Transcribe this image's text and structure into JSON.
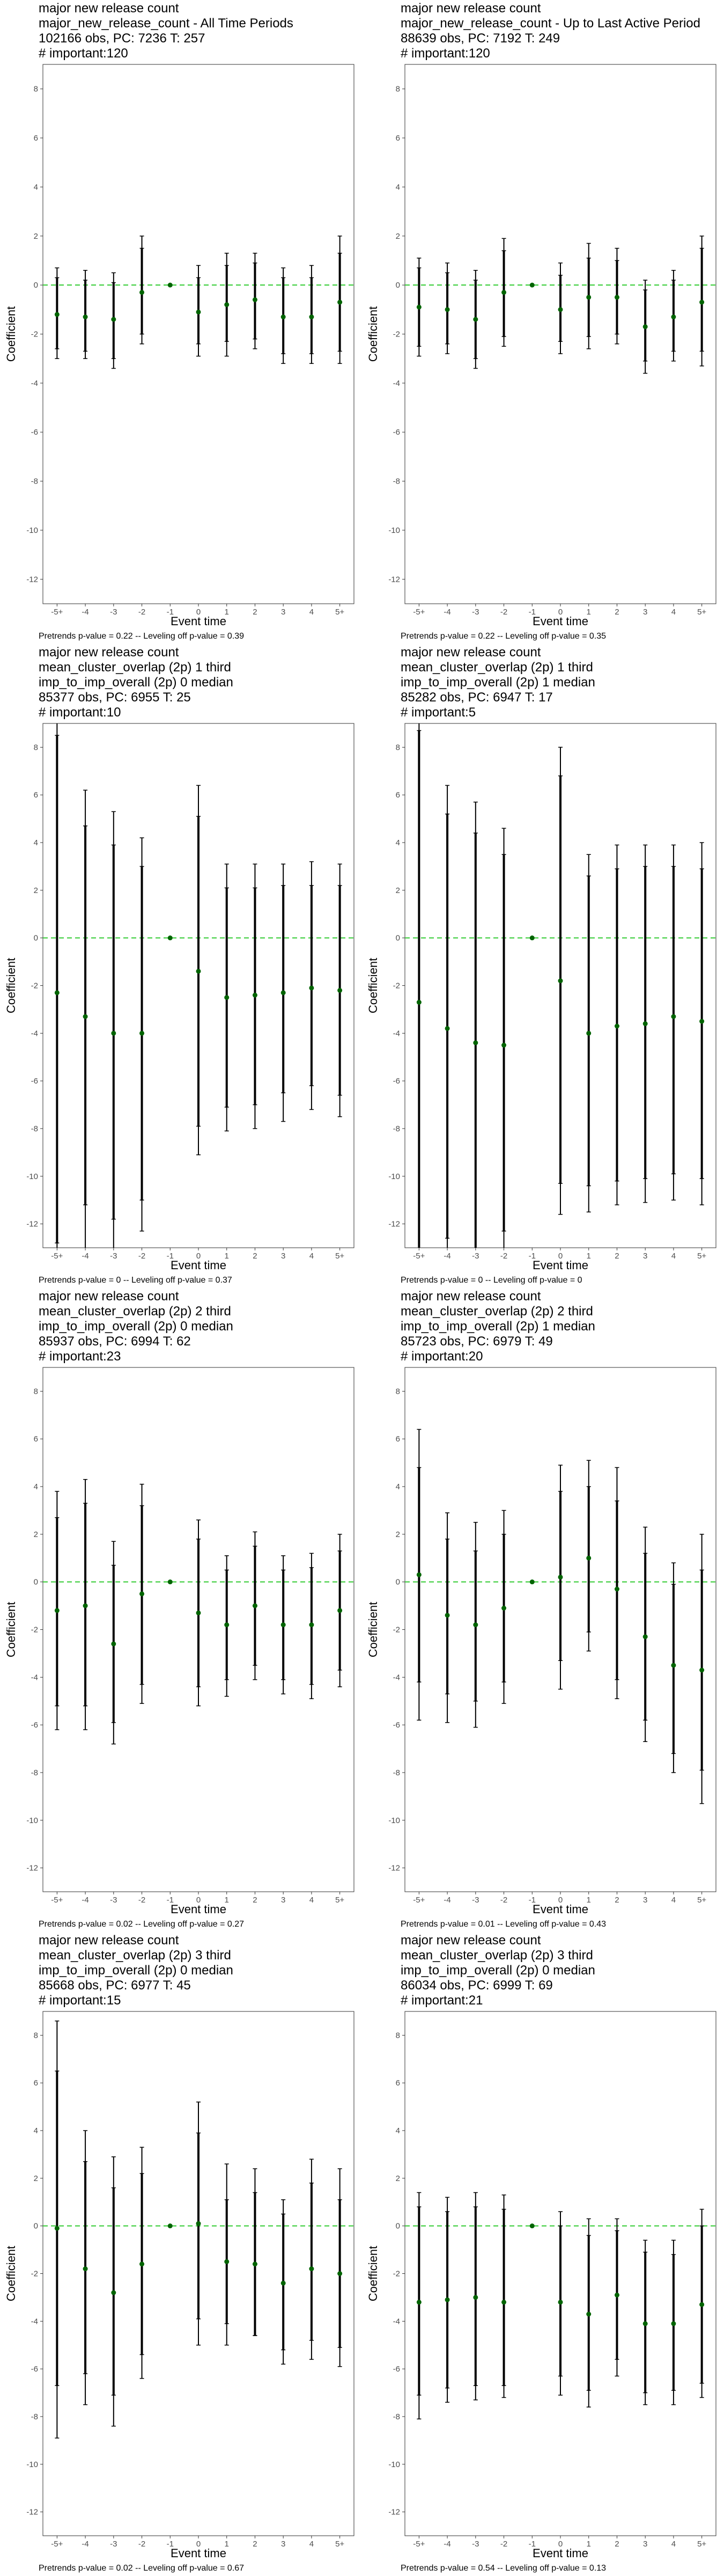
{
  "chart_data": [
    {
      "type": "scatter",
      "title_lines": [
        "major new release count",
        "major_new_release_count - All Time Periods",
        "102166 obs, PC: 7236 T: 257",
        "# important:120"
      ],
      "xlabel": "Event time",
      "ylabel": "Coefficient",
      "categories": [
        "-5+",
        "-4",
        "-3",
        "-2",
        "-1",
        "0",
        "1",
        "2",
        "3",
        "4",
        "5+"
      ],
      "ylim": [
        -13,
        9
      ],
      "yticks": [
        -12,
        -10,
        -8,
        -6,
        -4,
        -2,
        0,
        2,
        4,
        6,
        8
      ],
      "estimate": [
        -1.2,
        -1.3,
        -1.4,
        -0.3,
        0,
        -1.1,
        -0.8,
        -0.6,
        -1.3,
        -1.3,
        -0.7
      ],
      "ci_low": [
        -3.0,
        -3.0,
        -3.4,
        -2.4,
        0,
        -2.9,
        -2.9,
        -2.6,
        -3.2,
        -3.2,
        -3.2
      ],
      "ci_high": [
        0.7,
        0.6,
        0.5,
        2.0,
        0,
        0.8,
        1.3,
        1.3,
        0.7,
        0.8,
        2.0
      ],
      "inner_low": [
        -2.6,
        -2.7,
        -3.0,
        -2.0,
        0,
        -2.4,
        -2.3,
        -2.2,
        -2.8,
        -2.8,
        -2.7
      ],
      "inner_high": [
        0.3,
        0.2,
        0.1,
        1.5,
        0,
        0.3,
        0.8,
        0.9,
        0.3,
        0.3,
        1.3
      ],
      "footnote": "Pretrends p-value = 0.22 -- Leveling off p-value = 0.39"
    },
    {
      "type": "scatter",
      "title_lines": [
        "major new release count",
        "major_new_release_count - Up to Last Active Period",
        "88639 obs, PC: 7192 T: 249",
        "# important:120"
      ],
      "xlabel": "Event time",
      "ylabel": "Coefficient",
      "categories": [
        "-5+",
        "-4",
        "-3",
        "-2",
        "-1",
        "0",
        "1",
        "2",
        "3",
        "4",
        "5+"
      ],
      "ylim": [
        -13,
        9
      ],
      "yticks": [
        -12,
        -10,
        -8,
        -6,
        -4,
        -2,
        0,
        2,
        4,
        6,
        8
      ],
      "estimate": [
        -0.9,
        -1.0,
        -1.4,
        -0.3,
        0,
        -1.0,
        -0.5,
        -0.5,
        -1.7,
        -1.3,
        -0.7
      ],
      "ci_low": [
        -2.9,
        -2.8,
        -3.4,
        -2.5,
        0,
        -2.8,
        -2.6,
        -2.4,
        -3.6,
        -3.1,
        -3.3
      ],
      "ci_high": [
        1.1,
        0.9,
        0.6,
        1.9,
        0,
        0.9,
        1.7,
        1.5,
        0.2,
        0.6,
        2.0
      ],
      "inner_low": [
        -2.5,
        -2.4,
        -3.0,
        -2.1,
        0,
        -2.3,
        -2.1,
        -2.0,
        -3.1,
        -2.7,
        -2.7
      ],
      "inner_high": [
        0.7,
        0.5,
        0.2,
        1.4,
        0,
        0.4,
        1.1,
        1.0,
        -0.2,
        0.2,
        1.5
      ],
      "footnote": "Pretrends p-value = 0.22 -- Leveling off p-value = 0.35"
    },
    {
      "type": "scatter",
      "title_lines": [
        "major new release count",
        "mean_cluster_overlap (2p) 1 third",
        "imp_to_imp_overall (2p) 0 median",
        "85377 obs, PC: 6955 T: 25",
        "# important:10"
      ],
      "xlabel": "Event time",
      "ylabel": "Coefficient",
      "categories": [
        "-5+",
        "-4",
        "-3",
        "-2",
        "-1",
        "0",
        "1",
        "2",
        "3",
        "4",
        "5+"
      ],
      "ylim": [
        -13,
        9
      ],
      "yticks": [
        -12,
        -10,
        -8,
        -6,
        -4,
        -2,
        0,
        2,
        4,
        6,
        8
      ],
      "estimate": [
        -2.3,
        -3.3,
        -4.0,
        -4.0,
        0,
        -1.4,
        -2.5,
        -2.4,
        -2.3,
        -2.1,
        -2.2
      ],
      "ci_low": [
        -13.0,
        -13.0,
        -13.0,
        -12.3,
        0,
        -9.1,
        -8.1,
        -8.0,
        -7.7,
        -7.2,
        -7.5
      ],
      "ci_high": [
        9.0,
        6.2,
        5.3,
        4.2,
        0,
        6.4,
        3.1,
        3.1,
        3.1,
        3.2,
        3.1
      ],
      "inner_low": [
        -12.8,
        -11.2,
        -11.8,
        -11.0,
        0,
        -7.9,
        -7.1,
        -7.0,
        -6.5,
        -6.2,
        -6.6
      ],
      "inner_high": [
        8.5,
        4.7,
        3.9,
        3.0,
        0,
        5.1,
        2.1,
        2.1,
        2.2,
        2.2,
        2.2
      ],
      "footnote": "Pretrends p-value = 0 -- Leveling off p-value = 0.37"
    },
    {
      "type": "scatter",
      "title_lines": [
        "major new release count",
        "mean_cluster_overlap (2p) 1 third",
        "imp_to_imp_overall (2p) 1 median",
        "85282 obs, PC: 6947 T: 17",
        "# important:5"
      ],
      "xlabel": "Event time",
      "ylabel": "Coefficient",
      "categories": [
        "-5+",
        "-4",
        "-3",
        "-2",
        "-1",
        "0",
        "1",
        "2",
        "3",
        "4",
        "5+"
      ],
      "ylim": [
        -13,
        9
      ],
      "yticks": [
        -12,
        -10,
        -8,
        -6,
        -4,
        -2,
        0,
        2,
        4,
        6,
        8
      ],
      "estimate": [
        -2.7,
        -3.8,
        -4.4,
        -4.5,
        0,
        -1.8,
        -4.0,
        -3.7,
        -3.6,
        -3.3,
        -3.5
      ],
      "ci_low": [
        -13.0,
        -13.0,
        -13.0,
        -13.0,
        0,
        -11.6,
        -11.5,
        -11.2,
        -11.1,
        -11.0,
        -11.2
      ],
      "ci_high": [
        9.0,
        6.4,
        5.7,
        4.6,
        0,
        8.0,
        3.5,
        3.9,
        3.9,
        3.9,
        4.0
      ],
      "inner_low": [
        -13.0,
        -12.6,
        -13.0,
        -12.3,
        0,
        -10.3,
        -10.4,
        -10.2,
        -10.1,
        -9.9,
        -10.1
      ],
      "inner_high": [
        8.7,
        5.2,
        4.4,
        3.5,
        0,
        6.8,
        2.6,
        2.9,
        3.0,
        3.0,
        2.9
      ],
      "footnote": "Pretrends p-value = 0 -- Leveling off p-value = 0"
    },
    {
      "type": "scatter",
      "title_lines": [
        "major new release count",
        "mean_cluster_overlap (2p) 2 third",
        "imp_to_imp_overall (2p) 0 median",
        "85937 obs, PC: 6994 T: 62",
        "# important:23"
      ],
      "xlabel": "Event time",
      "ylabel": "Coefficient",
      "categories": [
        "-5+",
        "-4",
        "-3",
        "-2",
        "-1",
        "0",
        "1",
        "2",
        "3",
        "4",
        "5+"
      ],
      "ylim": [
        -13,
        9
      ],
      "yticks": [
        -12,
        -10,
        -8,
        -6,
        -4,
        -2,
        0,
        2,
        4,
        6,
        8
      ],
      "estimate": [
        -1.2,
        -1.0,
        -2.6,
        -0.5,
        0,
        -1.3,
        -1.8,
        -1.0,
        -1.8,
        -1.8,
        -1.2
      ],
      "ci_low": [
        -6.2,
        -6.2,
        -6.8,
        -5.1,
        0,
        -5.2,
        -4.8,
        -4.1,
        -4.7,
        -4.9,
        -4.4
      ],
      "ci_high": [
        3.8,
        4.3,
        1.7,
        4.1,
        0,
        2.6,
        1.1,
        2.1,
        1.1,
        1.2,
        2.0
      ],
      "inner_low": [
        -5.2,
        -5.2,
        -5.9,
        -4.3,
        0,
        -4.4,
        -4.1,
        -3.5,
        -4.1,
        -4.3,
        -3.7
      ],
      "inner_high": [
        2.7,
        3.3,
        0.7,
        3.2,
        0,
        1.8,
        0.5,
        1.5,
        0.5,
        0.6,
        1.3
      ],
      "footnote": "Pretrends p-value = 0.02 -- Leveling off p-value = 0.27"
    },
    {
      "type": "scatter",
      "title_lines": [
        "major new release count",
        "mean_cluster_overlap (2p) 2 third",
        "imp_to_imp_overall (2p) 1 median",
        "85723 obs, PC: 6979 T: 49",
        "# important:20"
      ],
      "xlabel": "Event time",
      "ylabel": "Coefficient",
      "categories": [
        "-5+",
        "-4",
        "-3",
        "-2",
        "-1",
        "0",
        "1",
        "2",
        "3",
        "4",
        "5+"
      ],
      "ylim": [
        -13,
        9
      ],
      "yticks": [
        -12,
        -10,
        -8,
        -6,
        -4,
        -2,
        0,
        2,
        4,
        6,
        8
      ],
      "estimate": [
        0.3,
        -1.4,
        -1.8,
        -1.1,
        0,
        0.2,
        1.0,
        -0.3,
        -2.3,
        -3.5,
        -3.7
      ],
      "ci_low": [
        -5.8,
        -5.9,
        -6.1,
        -5.1,
        0,
        -4.5,
        -2.9,
        -4.9,
        -6.7,
        -8.0,
        -9.3
      ],
      "ci_high": [
        6.4,
        2.9,
        2.5,
        3.0,
        0,
        4.9,
        5.1,
        4.8,
        2.3,
        0.8,
        2.0
      ],
      "inner_low": [
        -4.2,
        -4.7,
        -5.0,
        -4.2,
        0,
        -3.3,
        -2.1,
        -4.1,
        -5.8,
        -7.2,
        -7.9
      ],
      "inner_high": [
        4.8,
        1.8,
        1.3,
        2.0,
        0,
        3.8,
        4.0,
        3.4,
        1.2,
        -0.1,
        0.5
      ],
      "footnote": "Pretrends p-value = 0.01 -- Leveling off p-value = 0.43"
    },
    {
      "type": "scatter",
      "title_lines": [
        "major new release count",
        "mean_cluster_overlap (2p) 3 third",
        "imp_to_imp_overall (2p) 0 median",
        "85668 obs, PC: 6977 T: 45",
        "# important:15"
      ],
      "xlabel": "Event time",
      "ylabel": "Coefficient",
      "categories": [
        "-5+",
        "-4",
        "-3",
        "-2",
        "-1",
        "0",
        "1",
        "2",
        "3",
        "4",
        "5+"
      ],
      "ylim": [
        -13,
        9
      ],
      "yticks": [
        -12,
        -10,
        -8,
        -6,
        -4,
        -2,
        0,
        2,
        4,
        6,
        8
      ],
      "estimate": [
        -0.1,
        -1.8,
        -2.8,
        -1.6,
        0,
        0.1,
        -1.5,
        -1.6,
        -2.4,
        -1.8,
        -2.0
      ],
      "ci_low": [
        -8.9,
        -7.5,
        -8.4,
        -6.4,
        0,
        -5.0,
        -5.0,
        -4.6,
        -5.8,
        -5.6,
        -5.9
      ],
      "ci_high": [
        8.6,
        4.0,
        2.9,
        3.3,
        0,
        5.2,
        2.6,
        2.4,
        1.1,
        2.8,
        2.4
      ],
      "inner_low": [
        -6.7,
        -6.2,
        -7.1,
        -5.4,
        0,
        -3.9,
        -4.1,
        -4.6,
        -5.2,
        -4.8,
        -5.1
      ],
      "inner_high": [
        6.5,
        2.7,
        1.6,
        2.2,
        0,
        3.9,
        1.1,
        1.4,
        0.5,
        1.8,
        1.1
      ],
      "footnote": "Pretrends p-value = 0.02 -- Leveling off p-value = 0.67"
    },
    {
      "type": "scatter",
      "title_lines": [
        "major new release count",
        "mean_cluster_overlap (2p) 3 third",
        "imp_to_imp_overall (2p) 0 median",
        "86034 obs, PC: 6999 T: 69",
        "# important:21"
      ],
      "xlabel": "Event time",
      "ylabel": "Coefficient",
      "categories": [
        "-5+",
        "-4",
        "-3",
        "-2",
        "-1",
        "0",
        "1",
        "2",
        "3",
        "4",
        "5+"
      ],
      "ylim": [
        -13,
        9
      ],
      "yticks": [
        -12,
        -10,
        -8,
        -6,
        -4,
        -2,
        0,
        2,
        4,
        6,
        8
      ],
      "estimate": [
        -3.2,
        -3.1,
        -3.0,
        -3.2,
        0,
        -3.2,
        -3.7,
        -2.9,
        -4.1,
        -4.1,
        -3.3
      ],
      "ci_low": [
        -8.1,
        -7.4,
        -7.3,
        -7.2,
        0,
        -7.1,
        -7.6,
        -6.3,
        -7.5,
        -7.5,
        -7.2
      ],
      "ci_high": [
        1.4,
        1.2,
        1.4,
        1.3,
        0,
        0.6,
        0.3,
        0.3,
        -0.6,
        -0.6,
        0.7
      ],
      "inner_low": [
        -7.1,
        -6.8,
        -6.7,
        -6.7,
        0,
        -6.3,
        -6.9,
        -5.6,
        -7.0,
        -6.9,
        -6.6
      ],
      "inner_high": [
        0.8,
        0.6,
        0.8,
        0.7,
        0,
        0.0,
        -0.4,
        -0.2,
        -1.1,
        -1.2,
        0.0
      ],
      "footnote": "Pretrends p-value = 0.54 -- Leveling off p-value = 0.13"
    }
  ],
  "colors": {
    "point": "#006400",
    "zero_line": "#33cc33",
    "errorbar": "#000000",
    "panel_border": "#333333",
    "tick_text": "#4d4d4d"
  }
}
